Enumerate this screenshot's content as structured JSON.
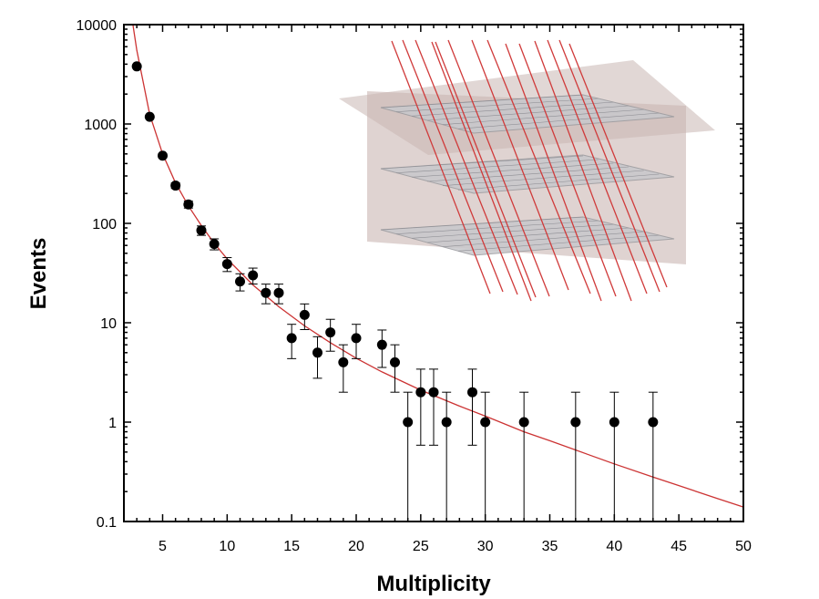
{
  "chart_data": {
    "type": "scatter",
    "title": "",
    "xlabel": "Multiplicity",
    "ylabel": "Events",
    "xlim": [
      2,
      50
    ],
    "ylim": [
      0.1,
      10000
    ],
    "yscale": "log",
    "grid": false,
    "x_ticks": [
      "5",
      "10",
      "15",
      "20",
      "25",
      "30",
      "35",
      "40",
      "45",
      "50"
    ],
    "y_ticks": [
      "0.1",
      "1",
      "10",
      "100",
      "1000",
      "10000"
    ],
    "series": [
      {
        "marker": "filled-circle",
        "color": "#000000",
        "points": [
          {
            "x": 3,
            "y": 3800
          },
          {
            "x": 4,
            "y": 1180
          },
          {
            "x": 5,
            "y": 480
          },
          {
            "x": 6,
            "y": 240
          },
          {
            "x": 7,
            "y": 155
          },
          {
            "x": 8,
            "y": 85
          },
          {
            "x": 9,
            "y": 62
          },
          {
            "x": 10,
            "y": 39
          },
          {
            "x": 11,
            "y": 26
          },
          {
            "x": 12,
            "y": 30
          },
          {
            "x": 13,
            "y": 20
          },
          {
            "x": 14,
            "y": 20
          },
          {
            "x": 15,
            "y": 7
          },
          {
            "x": 16,
            "y": 12
          },
          {
            "x": 17,
            "y": 5
          },
          {
            "x": 18,
            "y": 8
          },
          {
            "x": 19,
            "y": 4
          },
          {
            "x": 20,
            "y": 7
          },
          {
            "x": 22,
            "y": 6
          },
          {
            "x": 23,
            "y": 4
          },
          {
            "x": 24,
            "y": 1
          },
          {
            "x": 25,
            "y": 2
          },
          {
            "x": 26,
            "y": 2
          },
          {
            "x": 27,
            "y": 1
          },
          {
            "x": 29,
            "y": 2
          },
          {
            "x": 30,
            "y": 1
          },
          {
            "x": 33,
            "y": 1
          },
          {
            "x": 37,
            "y": 1
          },
          {
            "x": 40,
            "y": 1
          },
          {
            "x": 43,
            "y": 1
          }
        ],
        "error_bars": "poisson (sqrt N)"
      },
      {
        "type": "line",
        "color": "#cc3333",
        "points": [
          {
            "x": 2.7,
            "y": 10000
          },
          {
            "x": 3,
            "y": 5500
          },
          {
            "x": 4,
            "y": 1250
          },
          {
            "x": 5,
            "y": 500
          },
          {
            "x": 6,
            "y": 255
          },
          {
            "x": 7,
            "y": 150
          },
          {
            "x": 8,
            "y": 95
          },
          {
            "x": 9,
            "y": 63
          },
          {
            "x": 10,
            "y": 44
          },
          {
            "x": 12,
            "y": 24
          },
          {
            "x": 14,
            "y": 14.5
          },
          {
            "x": 16,
            "y": 9.3
          },
          {
            "x": 18,
            "y": 6.3
          },
          {
            "x": 20,
            "y": 4.4
          },
          {
            "x": 22,
            "y": 3.2
          },
          {
            "x": 25,
            "y": 2.1
          },
          {
            "x": 28,
            "y": 1.45
          },
          {
            "x": 30,
            "y": 1.15
          },
          {
            "x": 33,
            "y": 0.8
          },
          {
            "x": 35,
            "y": 0.65
          },
          {
            "x": 38,
            "y": 0.47
          },
          {
            "x": 40,
            "y": 0.38
          },
          {
            "x": 43,
            "y": 0.28
          },
          {
            "x": 45,
            "y": 0.23
          },
          {
            "x": 48,
            "y": 0.17
          },
          {
            "x": 50,
            "y": 0.14
          }
        ]
      }
    ],
    "inset": {
      "description": "detector-planes-with-tracks",
      "plane_color": "#c8c8cc",
      "box_color": "#c9b6b3",
      "track_color": "#d03a3a",
      "legend": "none"
    }
  }
}
